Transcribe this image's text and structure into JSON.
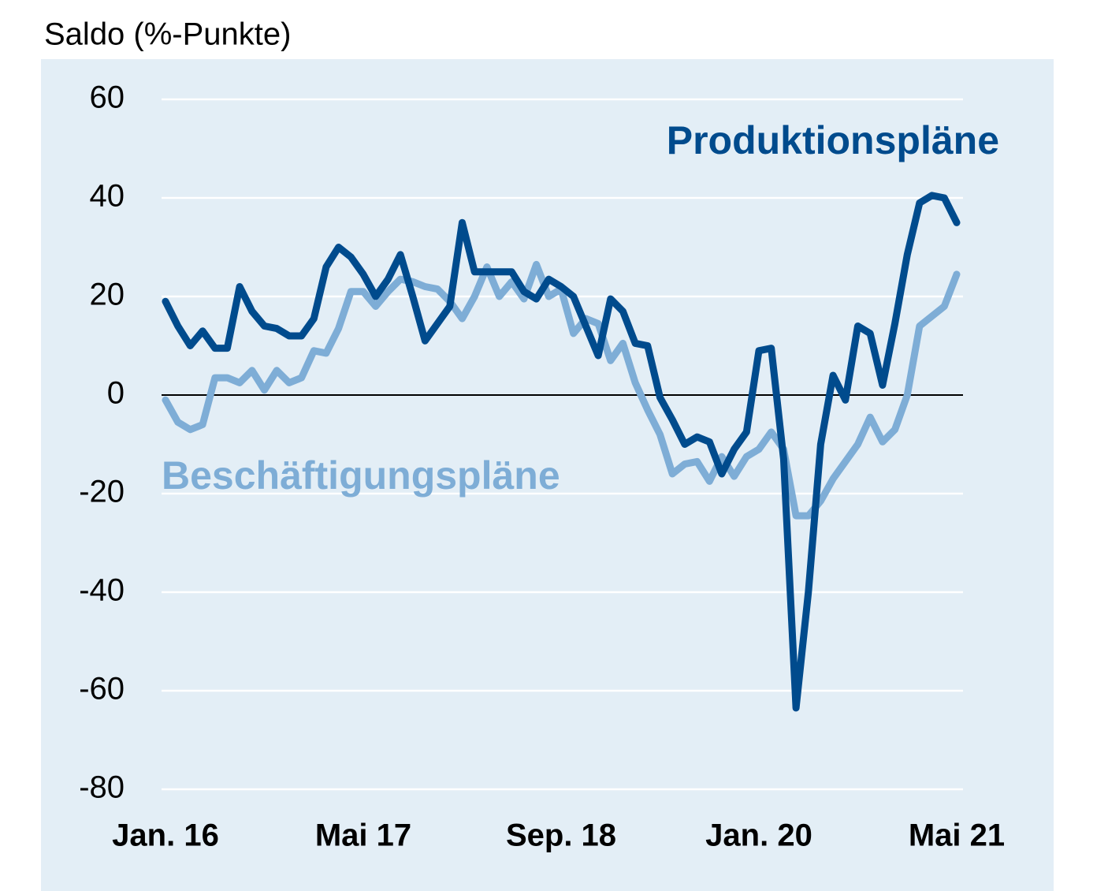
{
  "chart_data": {
    "type": "line",
    "y_axis_label": "Saldo (%-Punkte)",
    "categories": [
      "Jan. 16",
      null,
      null,
      null,
      null,
      null,
      null,
      null,
      null,
      null,
      null,
      null,
      null,
      null,
      null,
      null,
      "Mai 17",
      null,
      null,
      null,
      null,
      null,
      null,
      null,
      null,
      null,
      null,
      null,
      null,
      null,
      null,
      null,
      "Sep. 18",
      null,
      null,
      null,
      null,
      null,
      null,
      null,
      null,
      null,
      null,
      null,
      null,
      null,
      null,
      null,
      "Jan. 20",
      null,
      null,
      null,
      null,
      null,
      null,
      null,
      null,
      null,
      null,
      null,
      null,
      null,
      null,
      null,
      "Mai 21"
    ],
    "series": [
      {
        "name": "Produktionspläne",
        "color": "#004b8d",
        "values": [
          19,
          14,
          10,
          13,
          9.5,
          9.5,
          22,
          17,
          14,
          13.5,
          12,
          12,
          15.5,
          26,
          30,
          28,
          24.5,
          20,
          23.5,
          28.5,
          20,
          11,
          14.5,
          18,
          35,
          25,
          25,
          25,
          25,
          21,
          19.5,
          23.5,
          22,
          20,
          14,
          8,
          19.5,
          17,
          10.5,
          10,
          -0.5,
          -5,
          -10,
          -8.5,
          -9.5,
          -16,
          -11,
          -7.5,
          9,
          9.5,
          -13,
          -63.5,
          -40,
          -10,
          4,
          -1,
          14,
          12.5,
          2,
          14.5,
          28.5,
          39,
          40.5,
          40,
          35
        ]
      },
      {
        "name": "Beschäftigungspläne",
        "color": "#7eadd6",
        "values": [
          -1,
          -5.5,
          -7,
          -6,
          3.5,
          3.5,
          2.5,
          5,
          1,
          5,
          2.5,
          3.5,
          9,
          8.5,
          13.5,
          21,
          21,
          18,
          21,
          23.5,
          23,
          22,
          21.5,
          19,
          15.5,
          20,
          26,
          20,
          23,
          19.5,
          26.5,
          20,
          21.5,
          12.5,
          15.5,
          14.5,
          7,
          10.5,
          2.5,
          -3,
          -8,
          -16,
          -14,
          -13.5,
          -17.5,
          -12.5,
          -16.5,
          -12.5,
          -11,
          -7.5,
          -11,
          -24.5,
          -24.5,
          -21.5,
          -17,
          -13.5,
          -10,
          -4.5,
          -9.5,
          -7,
          0,
          14,
          16,
          18,
          24.5
        ]
      }
    ],
    "ylim": [
      -80,
      60
    ],
    "yticks": [
      -80,
      -60,
      -40,
      -20,
      0,
      20,
      40,
      60
    ],
    "grid": true
  }
}
